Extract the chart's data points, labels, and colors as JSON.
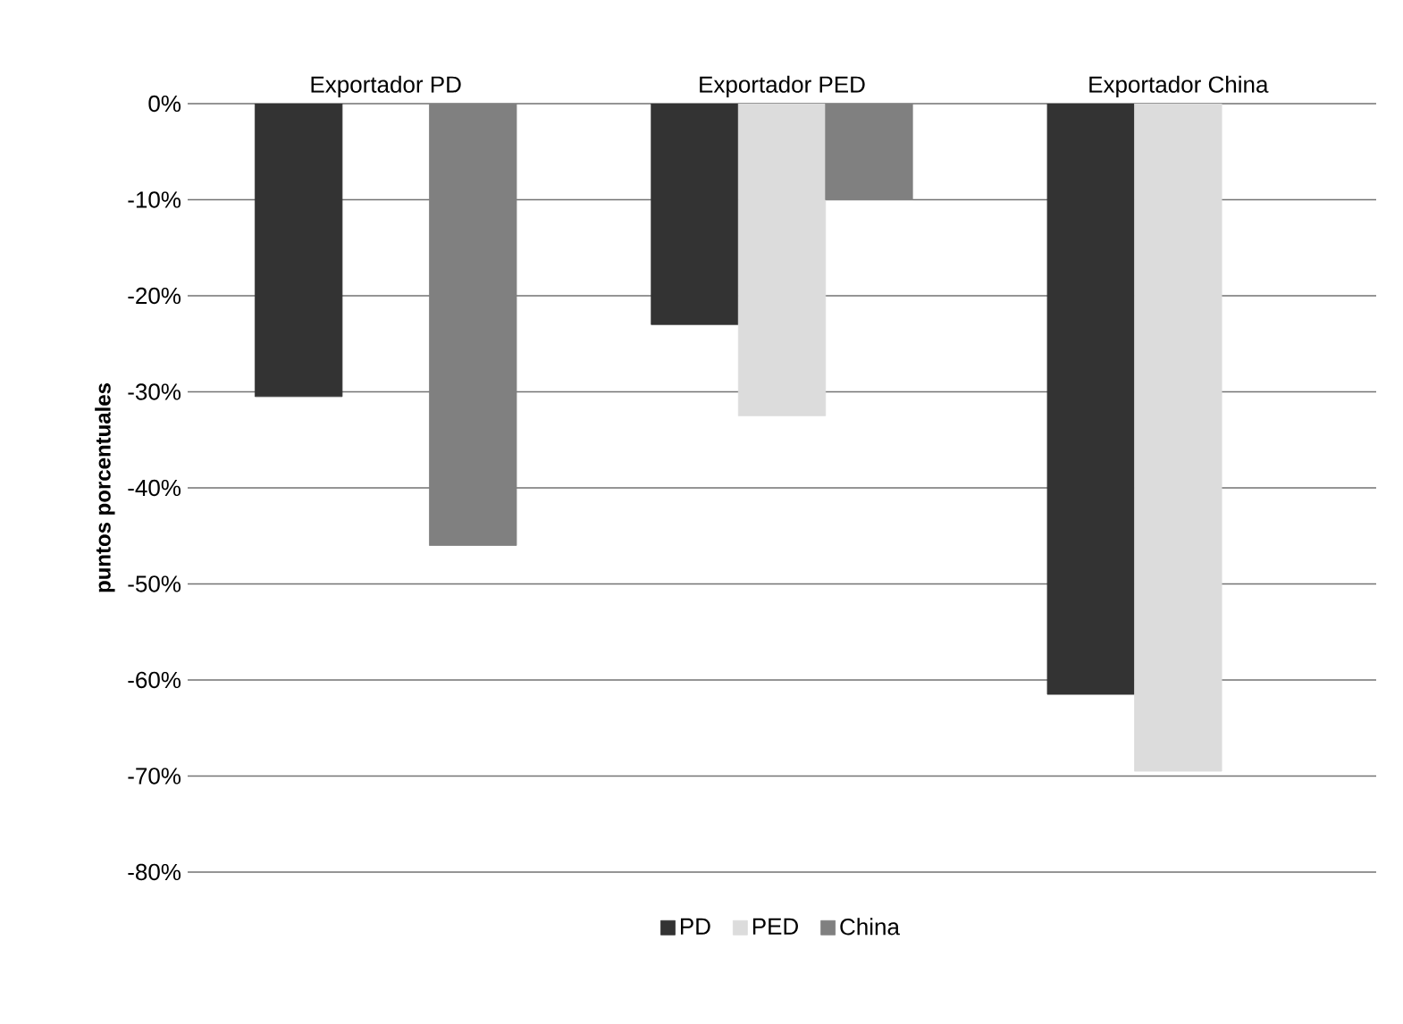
{
  "chart_data": {
    "type": "bar",
    "ylabel": "puntos porcentuales",
    "categories": [
      "Exportador PD",
      "Exportador PED",
      "Exportador China"
    ],
    "series": [
      {
        "name": "PD",
        "color": "#333333",
        "values": [
          -30.5,
          -23,
          -61.5
        ]
      },
      {
        "name": "PED",
        "color": "#dcdcdc",
        "values": [
          null,
          -32.5,
          -69.5
        ]
      },
      {
        "name": "China",
        "color": "#808080",
        "values": [
          -46,
          -10,
          null
        ]
      }
    ],
    "ylim": [
      -80,
      0
    ],
    "yticks": [
      {
        "value": 0,
        "label": "0%"
      },
      {
        "value": -10,
        "label": "-10%"
      },
      {
        "value": -20,
        "label": "-20%"
      },
      {
        "value": -30,
        "label": "-30%"
      },
      {
        "value": -40,
        "label": "-40%"
      },
      {
        "value": -50,
        "label": "-50%"
      },
      {
        "value": -60,
        "label": "-60%"
      },
      {
        "value": -70,
        "label": "-70%"
      },
      {
        "value": -80,
        "label": "-80%"
      }
    ],
    "grid": "y",
    "legend": "bottom"
  }
}
